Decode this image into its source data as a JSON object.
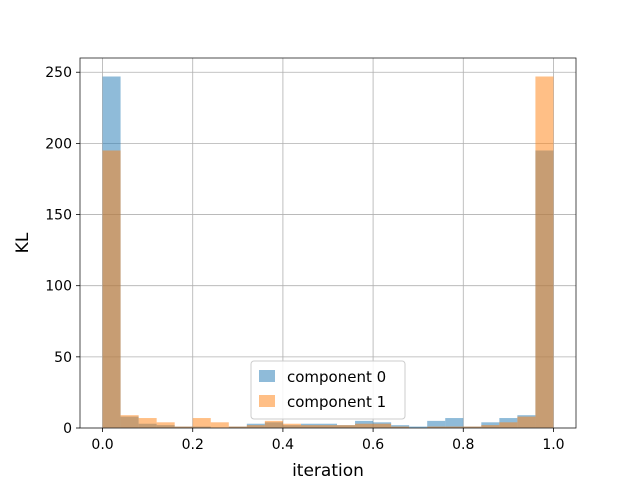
{
  "chart_data": {
    "type": "bar",
    "title": "",
    "xlabel": "iteration",
    "ylabel": "KL",
    "xlim": [
      -0.05,
      1.05
    ],
    "ylim": [
      0,
      260
    ],
    "xticks": [
      0.0,
      0.2,
      0.4,
      0.6,
      0.8,
      1.0
    ],
    "xtick_labels": [
      "0.0",
      "0.2",
      "0.4",
      "0.6",
      "0.8",
      "1.0"
    ],
    "yticks": [
      0,
      50,
      100,
      150,
      200,
      250
    ],
    "ytick_labels": [
      "0",
      "50",
      "100",
      "150",
      "200",
      "250"
    ],
    "grid": true,
    "legend_position": "lower center",
    "bins": {
      "start": 0.0,
      "end": 1.0,
      "count": 25
    },
    "series": [
      {
        "name": "component 0",
        "color": "#1f77b4",
        "alpha": 0.5,
        "values": [
          247,
          8,
          3,
          2,
          1,
          1,
          0,
          1,
          3,
          4,
          2,
          3,
          3,
          2,
          5,
          4,
          2,
          1,
          5,
          7,
          1,
          4,
          7,
          9,
          195
        ]
      },
      {
        "name": "component 1",
        "color": "#ff7f0e",
        "alpha": 0.5,
        "values": [
          195,
          9,
          7,
          4,
          1,
          7,
          4,
          1,
          2,
          5,
          3,
          2,
          2,
          2,
          3,
          3,
          1,
          0,
          1,
          1,
          1,
          2,
          4,
          8,
          247
        ]
      }
    ]
  }
}
